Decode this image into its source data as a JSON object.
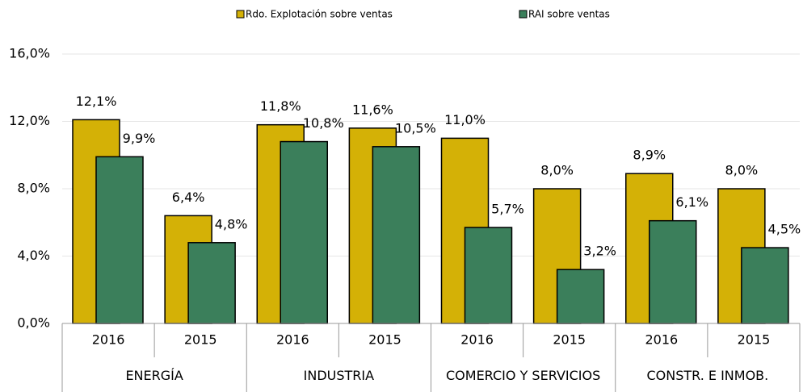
{
  "chart_data": {
    "type": "bar",
    "categories": [
      "2016",
      "2015",
      "2016",
      "2015",
      "2016",
      "2015",
      "2016",
      "2015"
    ],
    "groups": [
      "ENERGÍA",
      "INDUSTRIA",
      "COMERCIO Y SERVICIOS",
      "CONSTR. E INMOB."
    ],
    "series": [
      {
        "name": "Rdo. Explotación sobre ventas",
        "color": "#d4b106",
        "values": [
          12.1,
          6.4,
          11.8,
          11.6,
          11.0,
          8.0,
          8.9,
          8.0
        ],
        "value_labels": [
          "12,1%",
          "6,4%",
          "11,8%",
          "11,6%",
          "11,0%",
          "8,0%",
          "8,9%",
          "8,0%"
        ]
      },
      {
        "name": "RAI sobre ventas",
        "color": "#3b7f5b",
        "values": [
          9.9,
          4.8,
          10.8,
          10.5,
          5.7,
          3.2,
          6.1,
          4.5
        ],
        "value_labels": [
          "9,9%",
          "4,8%",
          "10,8%",
          "10,5%",
          "5,7%",
          "3,2%",
          "6,1%",
          "4,5%"
        ]
      }
    ],
    "ylim": [
      0,
      16
    ],
    "yticks": [
      {
        "value": 0,
        "label": "0,0%"
      },
      {
        "value": 4,
        "label": "4,0%"
      },
      {
        "value": 8,
        "label": "8,0%"
      },
      {
        "value": 12,
        "label": "12,0%"
      },
      {
        "value": 16,
        "label": "16,0%"
      }
    ],
    "grid": true,
    "legend": "top"
  }
}
